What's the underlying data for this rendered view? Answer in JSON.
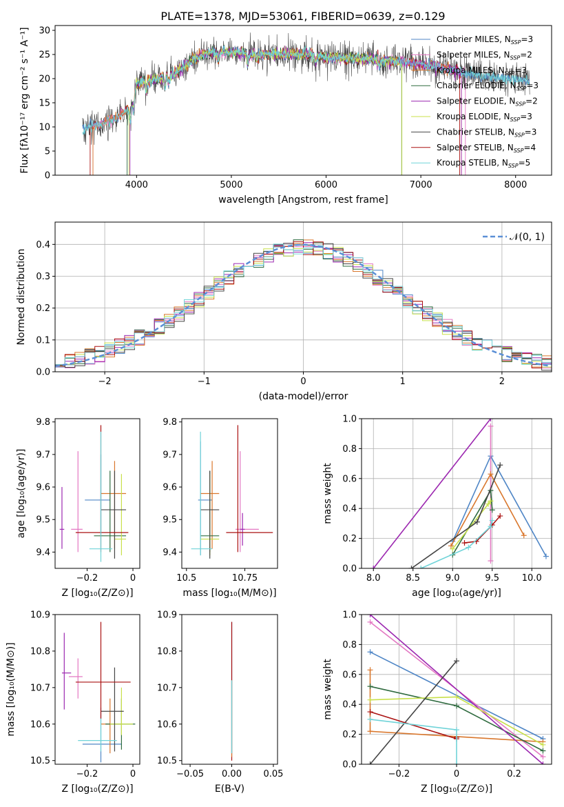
{
  "figure": {
    "title": "PLATE=1378, MJD=53061, FIBERID=0639, z=0.129",
    "models": [
      {
        "label": "Chabrier MILES, N",
        "sub": "SSP",
        "suffix": "=3",
        "color": "#4f86c6"
      },
      {
        "label": "Salpeter MILES, N",
        "sub": "SSP",
        "suffix": "=2",
        "color": "#e377c2"
      },
      {
        "label": "Kroupa MILES, N",
        "sub": "SSP",
        "suffix": "=3",
        "color": "#d9762b"
      },
      {
        "label": "Chabrier ELODIE, N",
        "sub": "SSP",
        "suffix": "=3",
        "color": "#2f6b3f"
      },
      {
        "label": "Salpeter ELODIE, N",
        "sub": "SSP",
        "suffix": "=2",
        "color": "#9c27b0"
      },
      {
        "label": "Kroupa ELODIE, N",
        "sub": "SSP",
        "suffix": "=3",
        "color": "#c8e04a"
      },
      {
        "label": "Chabrier STELIB, N",
        "sub": "SSP",
        "suffix": "=3",
        "color": "#444444"
      },
      {
        "label": "Salpeter STELIB, N",
        "sub": "SSP",
        "suffix": "=4",
        "color": "#aa1010"
      },
      {
        "label": "Kroupa STELIB, N",
        "sub": "SSP",
        "suffix": "=5",
        "color": "#6fd3d8"
      }
    ]
  },
  "chart_data": [
    {
      "id": "spectrum",
      "type": "line",
      "xlabel": "wavelength [Angstrom, rest frame]",
      "ylabel": "Flux [fλ10⁻¹⁷ erg cm⁻² s⁻¹ A⁻¹]",
      "xlim": [
        3140,
        8380
      ],
      "ylim": [
        0,
        31
      ],
      "xticks": [
        4000,
        5000,
        6000,
        7000,
        8000
      ],
      "yticks": [
        0,
        5,
        10,
        15,
        20,
        25,
        30
      ],
      "continuum": [
        [
          3400,
          9.5
        ],
        [
          3500,
          10
        ],
        [
          3600,
          10.5
        ],
        [
          3700,
          11.2
        ],
        [
          3800,
          12
        ],
        [
          3900,
          13.5
        ],
        [
          3950,
          15
        ],
        [
          4000,
          19
        ],
        [
          4100,
          19.5
        ],
        [
          4200,
          19.8
        ],
        [
          4300,
          20.5
        ],
        [
          4400,
          21
        ],
        [
          4500,
          22.5
        ],
        [
          4600,
          24
        ],
        [
          4700,
          25
        ],
        [
          4800,
          25.5
        ],
        [
          5000,
          25.5
        ],
        [
          5200,
          25
        ],
        [
          5500,
          25
        ],
        [
          5800,
          25
        ],
        [
          6000,
          24.5
        ],
        [
          6500,
          24
        ],
        [
          7000,
          23
        ],
        [
          7300,
          22
        ],
        [
          7500,
          21
        ],
        [
          7800,
          20
        ],
        [
          8000,
          20
        ],
        [
          8150,
          19.5
        ]
      ],
      "model_ranges": [
        [
          3430,
          8150
        ],
        [
          3540,
          7470
        ],
        [
          3540,
          7430
        ],
        [
          3900,
          6800
        ],
        [
          3930,
          7430
        ],
        [
          3920,
          6800
        ],
        [
          3430,
          8150
        ],
        [
          3510,
          7410
        ],
        [
          3430,
          8150
        ]
      ]
    },
    {
      "id": "residuals",
      "type": "bar",
      "xlabel": "(data-model)/error",
      "ylabel": "Normed distribution",
      "xlim": [
        -2.5,
        2.5
      ],
      "ylim": [
        0,
        0.47
      ],
      "xticks": [
        -2,
        -1,
        0,
        1,
        2
      ],
      "yticks": [
        0.0,
        0.1,
        0.2,
        0.3,
        0.4
      ],
      "bin_width": 0.1,
      "reference_label": "𝒩(0, 1)",
      "reference_color": "#5b8fd6"
    },
    {
      "id": "age_vs_Z",
      "type": "scatter",
      "xlabel": "Z [log₁₀(Z/Z⊙)]",
      "ylabel": "age  [log₁₀(age/yr)]",
      "xlim": [
        -0.34,
        0.03
      ],
      "ylim": [
        9.35,
        9.81
      ],
      "xticks": [
        -0.2,
        0.0
      ],
      "yticks": [
        9.4,
        9.5,
        9.6,
        9.7,
        9.8
      ],
      "points": [
        {
          "x": -0.14,
          "y": 9.56,
          "xerr": [
            0.07,
            0.04
          ],
          "yerr": [
            0.1,
            0.14
          ]
        },
        {
          "x": -0.24,
          "y": 9.47,
          "xerr": [
            0.03,
            0.02
          ],
          "yerr": [
            0.07,
            0.24
          ]
        },
        {
          "x": -0.08,
          "y": 9.58,
          "xerr": [
            0.06,
            0.05
          ],
          "yerr": [
            0.17,
            0.1
          ]
        },
        {
          "x": -0.1,
          "y": 9.45,
          "xerr": [
            0.07,
            0.07
          ],
          "yerr": [
            0.05,
            0.2
          ]
        },
        {
          "x": -0.31,
          "y": 9.47,
          "xerr": [
            0.01,
            0.01
          ],
          "yerr": [
            0.06,
            0.13
          ]
        },
        {
          "x": -0.05,
          "y": 9.44,
          "xerr": [
            0.03,
            0.02
          ],
          "yerr": [
            0.05,
            0.2
          ]
        },
        {
          "x": -0.08,
          "y": 9.53,
          "xerr": [
            0.06,
            0.05
          ],
          "yerr": [
            0.15,
            0.12
          ]
        },
        {
          "x": -0.14,
          "y": 9.46,
          "xerr": [
            0.11,
            0.12
          ],
          "yerr": [
            0.06,
            0.33
          ]
        },
        {
          "x": -0.14,
          "y": 9.41,
          "xerr": [
            0.05,
            0.05
          ],
          "yerr": [
            0.04,
            0.36
          ]
        }
      ]
    },
    {
      "id": "age_vs_mass",
      "type": "scatter",
      "xlabel": "mass [log₁₀(M/M⊙)]",
      "ylabel": "",
      "xlim": [
        10.48,
        10.89
      ],
      "ylim": [
        9.35,
        9.81
      ],
      "xticks": [
        10.5,
        10.75
      ],
      "yticks": [
        9.4,
        9.5,
        9.6,
        9.7,
        9.8
      ],
      "points": [
        {
          "x": 10.56,
          "y": 9.56,
          "xerr": [
            0.01,
            0.05
          ],
          "yerr": [
            0.17,
            0.18
          ]
        },
        {
          "x": 10.73,
          "y": 9.47,
          "xerr": [
            0.02,
            0.08
          ],
          "yerr": [
            0.07,
            0.24
          ]
        },
        {
          "x": 10.61,
          "y": 9.58,
          "xerr": [
            0.05,
            0.03
          ],
          "yerr": [
            0.17,
            0.1
          ]
        },
        {
          "x": 10.6,
          "y": 9.45,
          "xerr": [
            0.04,
            0.04
          ],
          "yerr": [
            0.05,
            0.2
          ]
        },
        {
          "x": 10.74,
          "y": 9.47,
          "xerr": [
            0.01,
            0.01
          ],
          "yerr": [
            0.05,
            0.05
          ]
        },
        {
          "x": 10.6,
          "y": 9.44,
          "xerr": [
            0.04,
            0.04
          ],
          "yerr": [
            0.05,
            0.2
          ]
        },
        {
          "x": 10.6,
          "y": 9.53,
          "xerr": [
            0.04,
            0.04
          ],
          "yerr": [
            0.15,
            0.12
          ]
        },
        {
          "x": 10.72,
          "y": 9.46,
          "xerr": [
            0.05,
            0.15
          ],
          "yerr": [
            0.06,
            0.33
          ]
        },
        {
          "x": 10.56,
          "y": 9.41,
          "xerr": [
            0.04,
            0.05
          ],
          "yerr": [
            0.02,
            0.36
          ]
        }
      ]
    },
    {
      "id": "weight_vs_age",
      "type": "line",
      "xlabel": "age  [log₁₀(age/yr)]",
      "ylabel": "mass weight",
      "xlim": [
        7.85,
        10.25
      ],
      "ylim": [
        0,
        1.0
      ],
      "xticks": [
        8.0,
        8.5,
        9.0,
        9.5,
        10.0
      ],
      "yticks": [
        0.0,
        0.2,
        0.4,
        0.6,
        0.8,
        1.0
      ],
      "series": [
        {
          "x": [
            9.0,
            9.48,
            10.18
          ],
          "y": [
            0.18,
            0.75,
            0.08
          ]
        },
        {
          "x": [
            9.48,
            9.48
          ],
          "y": [
            0.05,
            0.95
          ]
        },
        {
          "x": [
            8.98,
            9.48,
            9.9
          ],
          "y": [
            0.15,
            0.63,
            0.22
          ]
        },
        {
          "x": [
            9.0,
            9.48,
            9.5
          ],
          "y": [
            0.09,
            0.52,
            0.39
          ]
        },
        {
          "x": [
            8.0,
            9.48
          ],
          "y": [
            0.0,
            1.0
          ]
        },
        {
          "x": [
            9.0,
            9.45,
            9.48
          ],
          "y": [
            0.13,
            0.43,
            0.45
          ]
        },
        {
          "x": [
            8.48,
            9.31,
            9.6
          ],
          "y": [
            0.0,
            0.31,
            0.69
          ]
        },
        {
          "x": [
            9.15,
            9.3,
            9.5,
            9.6
          ],
          "y": [
            0.17,
            0.18,
            0.29,
            0.35
          ]
        },
        {
          "x": [
            8.6,
            9.2,
            9.48,
            9.5
          ],
          "y": [
            0.0,
            0.14,
            0.28,
            0.32
          ]
        }
      ]
    },
    {
      "id": "mass_vs_Z",
      "type": "scatter",
      "xlabel": "Z [log₁₀(Z/Z⊙)]",
      "ylabel": "mass [log₁₀(M/M⊙)]",
      "xlim": [
        -0.34,
        0.03
      ],
      "ylim": [
        10.49,
        10.9
      ],
      "xticks": [
        -0.2,
        0.0
      ],
      "yticks": [
        10.5,
        10.6,
        10.7,
        10.8,
        10.9
      ],
      "points": [
        {
          "x": -0.14,
          "y": 10.545,
          "xerr": [
            0.08,
            0.09
          ],
          "yerr": [
            0.05,
            0.1
          ]
        },
        {
          "x": -0.24,
          "y": 10.73,
          "xerr": [
            0.04,
            0.02
          ],
          "yerr": [
            0.06,
            0.05
          ]
        },
        {
          "x": -0.1,
          "y": 10.6,
          "xerr": [
            0.04,
            0.05
          ],
          "yerr": [
            0.08,
            0.07
          ]
        },
        {
          "x": -0.05,
          "y": 10.6,
          "xerr": [
            0.07,
            0.06
          ],
          "yerr": [
            0.07,
            0.07
          ]
        },
        {
          "x": -0.3,
          "y": 10.74,
          "xerr": [
            0.01,
            0.03
          ],
          "yerr": [
            0.1,
            0.11
          ]
        },
        {
          "x": -0.05,
          "y": 10.6,
          "xerr": [
            0.05,
            0.05
          ],
          "yerr": [
            0.03,
            0.1
          ]
        },
        {
          "x": -0.08,
          "y": 10.635,
          "xerr": [
            0.06,
            0.04
          ],
          "yerr": [
            0.11,
            0.12
          ]
        },
        {
          "x": -0.14,
          "y": 10.715,
          "xerr": [
            0.11,
            0.13
          ],
          "yerr": [
            0.1,
            0.165
          ]
        },
        {
          "x": -0.14,
          "y": 10.555,
          "xerr": [
            0.1,
            0.07
          ],
          "yerr": [
            0.03,
            0.06
          ]
        }
      ]
    },
    {
      "id": "mass_vs_ebv",
      "type": "scatter",
      "xlabel": "E(B-V)",
      "ylabel": "",
      "xlim": [
        -0.06,
        0.055
      ],
      "ylim": [
        10.49,
        10.9
      ],
      "xticks": [
        -0.05,
        0.0,
        0.05
      ],
      "yticks": [
        10.5,
        10.6,
        10.7,
        10.8,
        10.9
      ],
      "points": [
        {
          "x": 0.0,
          "y": 10.6,
          "xerr": [
            0,
            0
          ],
          "yerr": [
            0.08,
            0.28
          ]
        }
      ]
    },
    {
      "id": "weight_vs_Z",
      "type": "line",
      "xlabel": "Z [log₁₀(Z/Z⊙)]",
      "ylabel": "mass weight",
      "xlim": [
        -0.33,
        0.33
      ],
      "ylim": [
        0,
        1.0
      ],
      "xticks": [
        -0.2,
        0.0,
        0.2
      ],
      "yticks": [
        0.0,
        0.2,
        0.4,
        0.6,
        0.8,
        1.0
      ],
      "series": [
        {
          "x": [
            -0.3,
            0.3
          ],
          "y": [
            0.75,
            0.17
          ]
        },
        {
          "x": [
            -0.3,
            0.3
          ],
          "y": [
            0.95,
            0.05
          ]
        },
        {
          "x": [
            -0.3,
            -0.3,
            0.3
          ],
          "y": [
            0.63,
            0.22,
            0.15
          ]
        },
        {
          "x": [
            -0.3,
            0.0,
            0.3
          ],
          "y": [
            0.52,
            0.39,
            0.09
          ]
        },
        {
          "x": [
            -0.3,
            0.3
          ],
          "y": [
            1.0,
            0.0
          ]
        },
        {
          "x": [
            -0.3,
            0.0,
            0.3
          ],
          "y": [
            0.43,
            0.45,
            0.13
          ]
        },
        {
          "x": [
            -0.3,
            0.0
          ],
          "y": [
            0.0,
            0.69
          ]
        },
        {
          "x": [
            -0.3,
            0.0,
            0.0
          ],
          "y": [
            0.35,
            0.17,
            0.18
          ]
        },
        {
          "x": [
            -0.3,
            0.0,
            0.0
          ],
          "y": [
            0.3,
            0.23,
            0.0
          ]
        }
      ]
    }
  ]
}
